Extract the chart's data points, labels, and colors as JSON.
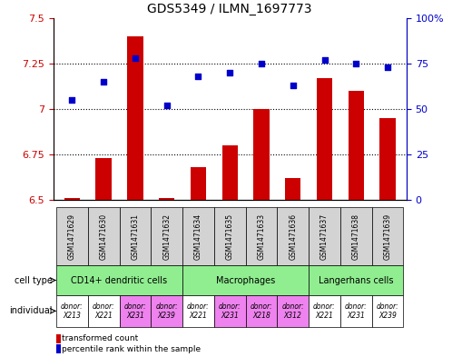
{
  "title": "GDS5349 / ILMN_1697773",
  "samples": [
    "GSM1471629",
    "GSM1471630",
    "GSM1471631",
    "GSM1471632",
    "GSM1471634",
    "GSM1471635",
    "GSM1471633",
    "GSM1471636",
    "GSM1471637",
    "GSM1471638",
    "GSM1471639"
  ],
  "transformed_count": [
    6.51,
    6.73,
    7.4,
    6.51,
    6.68,
    6.8,
    7.0,
    6.62,
    7.17,
    7.1,
    6.95
  ],
  "percentile_rank": [
    55,
    65,
    78,
    52,
    68,
    70,
    75,
    63,
    77,
    75,
    73
  ],
  "ylim_left": [
    6.5,
    7.5
  ],
  "ylim_right": [
    0,
    100
  ],
  "yticks_left": [
    6.5,
    6.75,
    7.0,
    7.25,
    7.5
  ],
  "yticks_right": [
    0,
    25,
    50,
    75,
    100
  ],
  "ytick_labels_left": [
    "6.5",
    "6.75",
    "7",
    "7.25",
    "7.5"
  ],
  "ytick_labels_right": [
    "0",
    "25",
    "50",
    "75",
    "100%"
  ],
  "cell_type_groups": [
    {
      "label": "CD14+ dendritic cells",
      "start": 0,
      "end": 4,
      "color": "#90EE90"
    },
    {
      "label": "Macrophages",
      "start": 4,
      "end": 8,
      "color": "#90EE90"
    },
    {
      "label": "Langerhans cells",
      "start": 8,
      "end": 11,
      "color": "#90EE90"
    }
  ],
  "individuals": [
    {
      "label": "donor:\nX213",
      "idx": 0,
      "color": "#FFFFFF"
    },
    {
      "label": "donor:\nX221",
      "idx": 1,
      "color": "#FFFFFF"
    },
    {
      "label": "donor:\nX231",
      "idx": 2,
      "color": "#EE82EE"
    },
    {
      "label": "donor:\nX239",
      "idx": 3,
      "color": "#EE82EE"
    },
    {
      "label": "donor:\nX221",
      "idx": 4,
      "color": "#FFFFFF"
    },
    {
      "label": "donor:\nX231",
      "idx": 5,
      "color": "#EE82EE"
    },
    {
      "label": "donor:\nX218",
      "idx": 6,
      "color": "#EE82EE"
    },
    {
      "label": "donor:\nX312",
      "idx": 7,
      "color": "#EE82EE"
    },
    {
      "label": "donor:\nX221",
      "idx": 8,
      "color": "#FFFFFF"
    },
    {
      "label": "donor:\nX231",
      "idx": 9,
      "color": "#FFFFFF"
    },
    {
      "label": "donor:\nX239",
      "idx": 10,
      "color": "#FFFFFF"
    }
  ],
  "bar_color": "#CC0000",
  "dot_color": "#0000CC",
  "tick_color_left": "#CC0000",
  "tick_color_right": "#0000CC",
  "gsm_bg_color": "#D3D3D3",
  "bar_width": 0.5,
  "dotted_grid_vals": [
    6.75,
    7.0,
    7.25
  ]
}
